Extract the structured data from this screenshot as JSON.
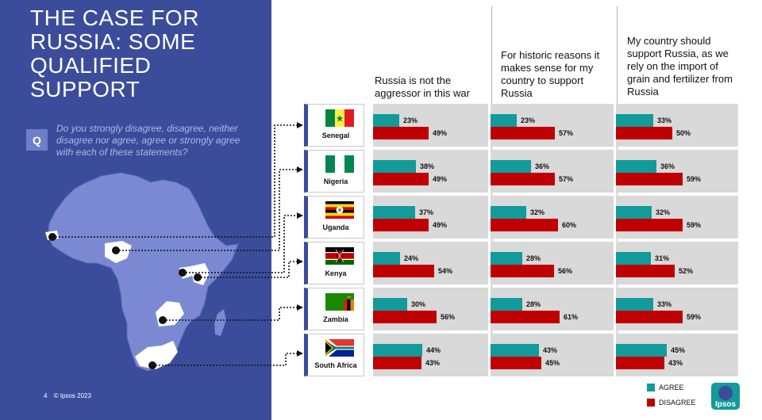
{
  "page": {
    "title": "THE CASE FOR RUSSIA: SOME QUALIFIED SUPPORT",
    "question_badge": "Q",
    "question": "Do you strongly disagree, disagree, neither disagree nor agree, agree or strongly agree with each of these statements?",
    "footer_page": "4",
    "footer_copyright": "© Ipsos 2023",
    "logo_text": "Ipsos"
  },
  "colors": {
    "panel": "#3b4c9b",
    "map": "#7b89d3",
    "agree": "#139a9a",
    "disagree": "#c00000",
    "row_bg": "#d9d9d9"
  },
  "chart_data": {
    "type": "bar",
    "orientation": "horizontal",
    "value_format": "percent",
    "panels": [
      "Russia is not the aggressor in this war",
      "For historic reasons it makes sense for my country to support Russia",
      "My country should support Russia, as we rely on the import of grain and fertilizer from Russia"
    ],
    "categories": [
      "Senegal",
      "Nigeria",
      "Uganda",
      "Kenya",
      "Zambia",
      "South Africa"
    ],
    "series": [
      {
        "name": "AGREE",
        "values": [
          [
            23,
            38,
            37,
            24,
            30,
            44
          ],
          [
            23,
            36,
            32,
            28,
            28,
            43
          ],
          [
            33,
            36,
            32,
            31,
            33,
            45
          ]
        ]
      },
      {
        "name": "DISAGREE",
        "values": [
          [
            49,
            49,
            49,
            54,
            56,
            43
          ],
          [
            57,
            57,
            60,
            56,
            61,
            45
          ],
          [
            50,
            59,
            59,
            52,
            59,
            43
          ]
        ]
      }
    ],
    "legend_position": "bottom-right",
    "grid": false
  }
}
